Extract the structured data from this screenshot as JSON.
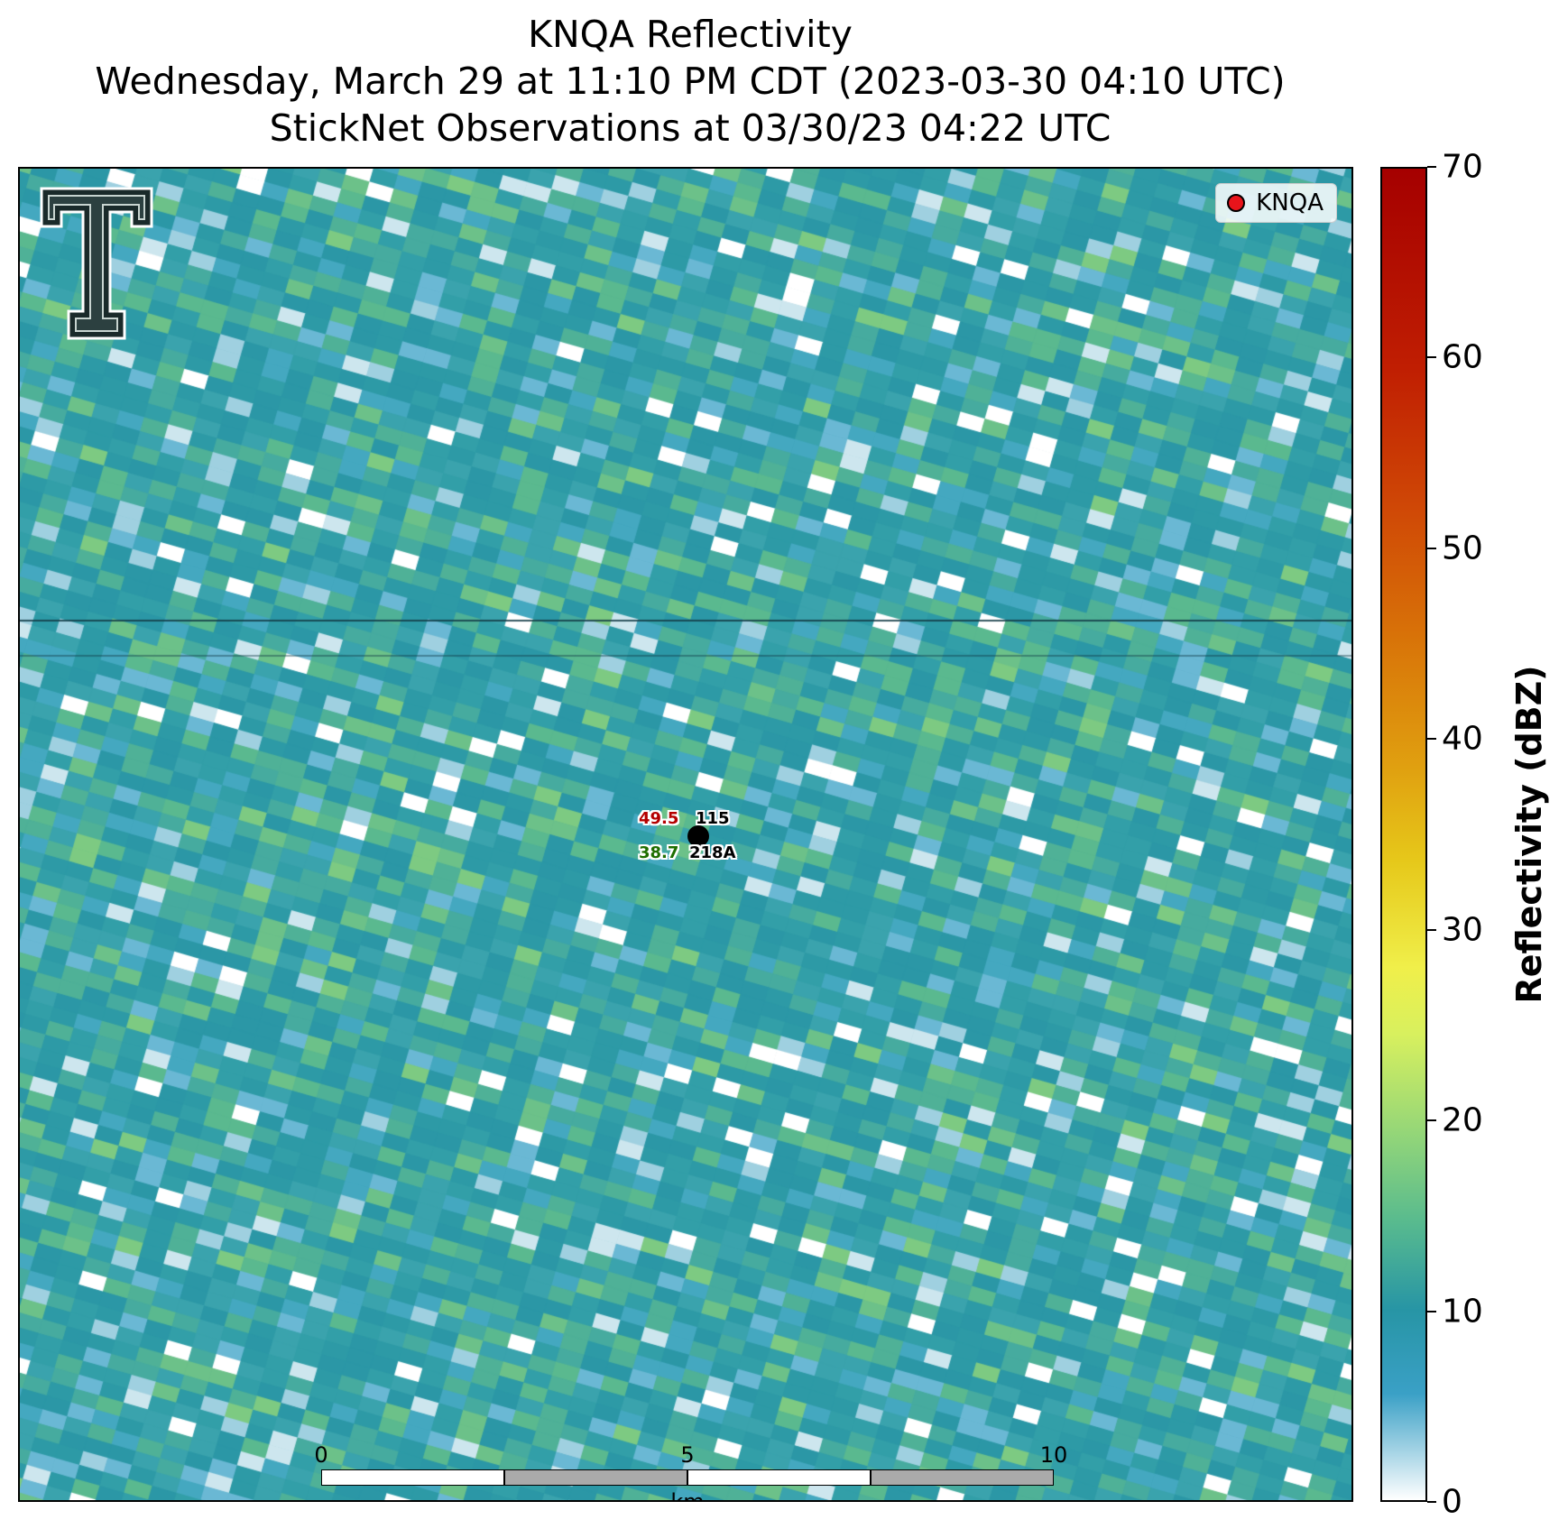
{
  "title": {
    "line1": "KNQA Reflectivity",
    "line2": "Wednesday, March 29 at 11:10 PM CDT (2023-03-30 04:10 UTC)",
    "line3": "StickNet Observations at 03/30/23 04:22 UTC"
  },
  "legend": {
    "label": "KNQA",
    "marker_color": "#e8141b"
  },
  "logo": {
    "icon": "texas-tech-double-t-logo-icon"
  },
  "station": {
    "id": "218A",
    "temperature": "49.5",
    "dewpoint": "38.7",
    "value_right": "115",
    "temperature_color": "#b40000",
    "dewpoint_color": "#1e6e00"
  },
  "scalebar": {
    "ticks": [
      "0",
      "5",
      "10"
    ],
    "unit": "km"
  },
  "colorbar": {
    "label": "Reflectivity (dBZ)",
    "ticks": [
      "0",
      "10",
      "20",
      "30",
      "40",
      "50",
      "60",
      "70"
    ],
    "range": [
      0,
      70
    ]
  }
}
